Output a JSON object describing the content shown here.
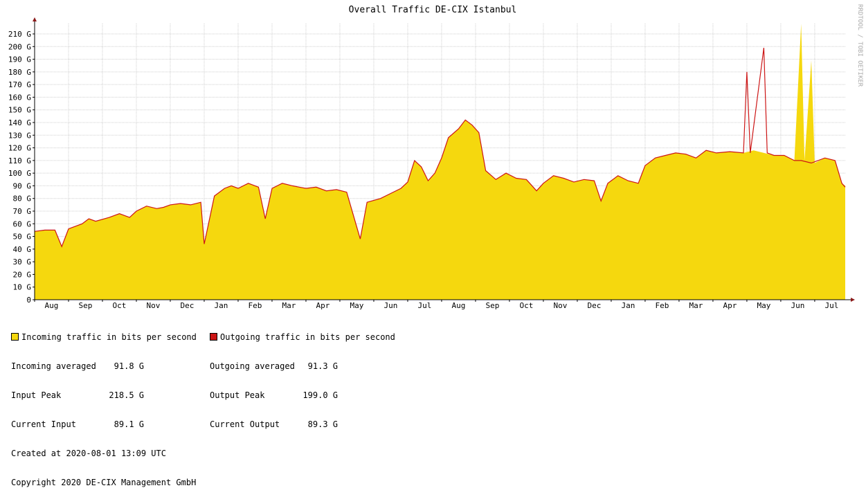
{
  "chart_data": {
    "type": "area",
    "title": "Overall Traffic DE-CIX Istanbul",
    "unit_suffix": "G",
    "ylim": [
      0,
      210
    ],
    "ytick_step": 10,
    "grid": true,
    "months": [
      "Aug",
      "Sep",
      "Oct",
      "Nov",
      "Dec",
      "Jan",
      "Feb",
      "Mar",
      "Apr",
      "May",
      "Jun",
      "Jul",
      "Aug",
      "Sep",
      "Oct",
      "Nov",
      "Dec",
      "Jan",
      "Feb",
      "Mar",
      "Apr",
      "May",
      "Jun",
      "Jul"
    ],
    "x_range_months": [
      0,
      23.9
    ],
    "series": [
      {
        "name": "Incoming traffic in bits per second",
        "color": "#f5d80e",
        "points": [
          [
            0,
            54
          ],
          [
            0.3,
            55
          ],
          [
            0.6,
            55
          ],
          [
            0.8,
            42
          ],
          [
            1.0,
            56
          ],
          [
            1.4,
            60
          ],
          [
            1.6,
            64
          ],
          [
            1.8,
            62
          ],
          [
            2.2,
            65
          ],
          [
            2.5,
            68
          ],
          [
            2.8,
            65
          ],
          [
            3.0,
            70
          ],
          [
            3.3,
            74
          ],
          [
            3.6,
            72
          ],
          [
            3.8,
            73
          ],
          [
            4.0,
            75
          ],
          [
            4.3,
            76
          ],
          [
            4.6,
            75
          ],
          [
            4.9,
            77
          ],
          [
            5.0,
            44
          ],
          [
            5.3,
            82
          ],
          [
            5.6,
            88
          ],
          [
            5.8,
            90
          ],
          [
            6.0,
            88
          ],
          [
            6.3,
            92
          ],
          [
            6.6,
            89
          ],
          [
            6.8,
            64
          ],
          [
            7.0,
            88
          ],
          [
            7.3,
            92
          ],
          [
            7.6,
            90
          ],
          [
            7.8,
            89
          ],
          [
            8.0,
            88
          ],
          [
            8.3,
            89
          ],
          [
            8.6,
            86
          ],
          [
            8.9,
            87
          ],
          [
            9.2,
            85
          ],
          [
            9.6,
            48
          ],
          [
            9.8,
            77
          ],
          [
            10.2,
            80
          ],
          [
            10.5,
            84
          ],
          [
            10.8,
            88
          ],
          [
            11.0,
            93
          ],
          [
            11.2,
            110
          ],
          [
            11.4,
            105
          ],
          [
            11.6,
            94
          ],
          [
            11.8,
            100
          ],
          [
            12.0,
            112
          ],
          [
            12.2,
            128
          ],
          [
            12.5,
            135
          ],
          [
            12.7,
            142
          ],
          [
            12.9,
            138
          ],
          [
            13.1,
            132
          ],
          [
            13.3,
            102
          ],
          [
            13.6,
            95
          ],
          [
            13.9,
            100
          ],
          [
            14.2,
            96
          ],
          [
            14.5,
            95
          ],
          [
            14.8,
            86
          ],
          [
            15.0,
            92
          ],
          [
            15.3,
            98
          ],
          [
            15.6,
            96
          ],
          [
            15.9,
            93
          ],
          [
            16.2,
            95
          ],
          [
            16.5,
            94
          ],
          [
            16.7,
            78
          ],
          [
            16.9,
            92
          ],
          [
            17.2,
            98
          ],
          [
            17.5,
            94
          ],
          [
            17.8,
            92
          ],
          [
            18.0,
            106
          ],
          [
            18.3,
            112
          ],
          [
            18.6,
            114
          ],
          [
            18.9,
            116
          ],
          [
            19.2,
            115
          ],
          [
            19.5,
            112
          ],
          [
            19.8,
            118
          ],
          [
            20.1,
            116
          ],
          [
            20.5,
            117
          ],
          [
            20.9,
            116
          ],
          [
            21.2,
            118
          ],
          [
            21.5,
            116
          ],
          [
            21.8,
            114
          ],
          [
            22.1,
            114
          ],
          [
            22.4,
            110
          ],
          [
            22.6,
            218
          ],
          [
            22.7,
            110
          ],
          [
            22.9,
            189
          ],
          [
            23.0,
            108
          ],
          [
            23.3,
            112
          ],
          [
            23.6,
            110
          ],
          [
            23.8,
            92
          ],
          [
            23.9,
            90
          ]
        ]
      },
      {
        "name": "Outgoing traffic in bits per second",
        "color": "#cc1515",
        "points": [
          [
            0,
            54
          ],
          [
            0.3,
            55
          ],
          [
            0.6,
            55
          ],
          [
            0.8,
            42
          ],
          [
            1.0,
            56
          ],
          [
            1.4,
            60
          ],
          [
            1.6,
            64
          ],
          [
            1.8,
            62
          ],
          [
            2.2,
            65
          ],
          [
            2.5,
            68
          ],
          [
            2.8,
            65
          ],
          [
            3.0,
            70
          ],
          [
            3.3,
            74
          ],
          [
            3.6,
            72
          ],
          [
            3.8,
            73
          ],
          [
            4.0,
            75
          ],
          [
            4.3,
            76
          ],
          [
            4.6,
            75
          ],
          [
            4.9,
            77
          ],
          [
            5.0,
            44
          ],
          [
            5.3,
            82
          ],
          [
            5.6,
            88
          ],
          [
            5.8,
            90
          ],
          [
            6.0,
            88
          ],
          [
            6.3,
            92
          ],
          [
            6.6,
            89
          ],
          [
            6.8,
            64
          ],
          [
            7.0,
            88
          ],
          [
            7.3,
            92
          ],
          [
            7.6,
            90
          ],
          [
            7.8,
            89
          ],
          [
            8.0,
            88
          ],
          [
            8.3,
            89
          ],
          [
            8.6,
            86
          ],
          [
            8.9,
            87
          ],
          [
            9.2,
            85
          ],
          [
            9.6,
            48
          ],
          [
            9.8,
            77
          ],
          [
            10.2,
            80
          ],
          [
            10.5,
            84
          ],
          [
            10.8,
            88
          ],
          [
            11.0,
            93
          ],
          [
            11.2,
            110
          ],
          [
            11.4,
            105
          ],
          [
            11.6,
            94
          ],
          [
            11.8,
            100
          ],
          [
            12.0,
            112
          ],
          [
            12.2,
            128
          ],
          [
            12.5,
            135
          ],
          [
            12.7,
            142
          ],
          [
            12.9,
            138
          ],
          [
            13.1,
            132
          ],
          [
            13.3,
            102
          ],
          [
            13.6,
            95
          ],
          [
            13.9,
            100
          ],
          [
            14.2,
            96
          ],
          [
            14.5,
            95
          ],
          [
            14.8,
            86
          ],
          [
            15.0,
            92
          ],
          [
            15.3,
            98
          ],
          [
            15.6,
            96
          ],
          [
            15.9,
            93
          ],
          [
            16.2,
            95
          ],
          [
            16.5,
            94
          ],
          [
            16.7,
            78
          ],
          [
            16.9,
            92
          ],
          [
            17.2,
            98
          ],
          [
            17.5,
            94
          ],
          [
            17.8,
            92
          ],
          [
            18.0,
            106
          ],
          [
            18.3,
            112
          ],
          [
            18.6,
            114
          ],
          [
            18.9,
            116
          ],
          [
            19.2,
            115
          ],
          [
            19.5,
            112
          ],
          [
            19.8,
            118
          ],
          [
            20.1,
            116
          ],
          [
            20.5,
            117
          ],
          [
            20.9,
            116
          ],
          [
            21.0,
            180
          ],
          [
            21.1,
            116
          ],
          [
            21.5,
            199
          ],
          [
            21.6,
            116
          ],
          [
            21.8,
            114
          ],
          [
            22.1,
            114
          ],
          [
            22.4,
            110
          ],
          [
            22.6,
            110
          ],
          [
            22.9,
            108
          ],
          [
            23.3,
            112
          ],
          [
            23.6,
            110
          ],
          [
            23.8,
            92
          ],
          [
            23.9,
            89
          ]
        ]
      }
    ]
  },
  "side_credit": "RRDTOOL / TOBI OETIKER",
  "legend": {
    "incoming_label": "Incoming traffic in bits per second",
    "outgoing_label": "Outgoing traffic in bits per second",
    "incoming_avg_label": "Incoming averaged",
    "incoming_avg_value": "91.8 G",
    "input_peak_label": "Input Peak",
    "input_peak_value": "218.5 G",
    "current_input_label": "Current Input",
    "current_input_value": "89.1 G",
    "outgoing_avg_label": "Outgoing averaged",
    "outgoing_avg_value": "91.3 G",
    "output_peak_label": "Output Peak",
    "output_peak_value": "199.0 G",
    "current_output_label": "Current Output",
    "current_output_value": "89.3 G",
    "created": "Created at 2020-08-01 13:09 UTC",
    "copyright": "Copyright 2020 DE-CIX Management GmbH"
  }
}
